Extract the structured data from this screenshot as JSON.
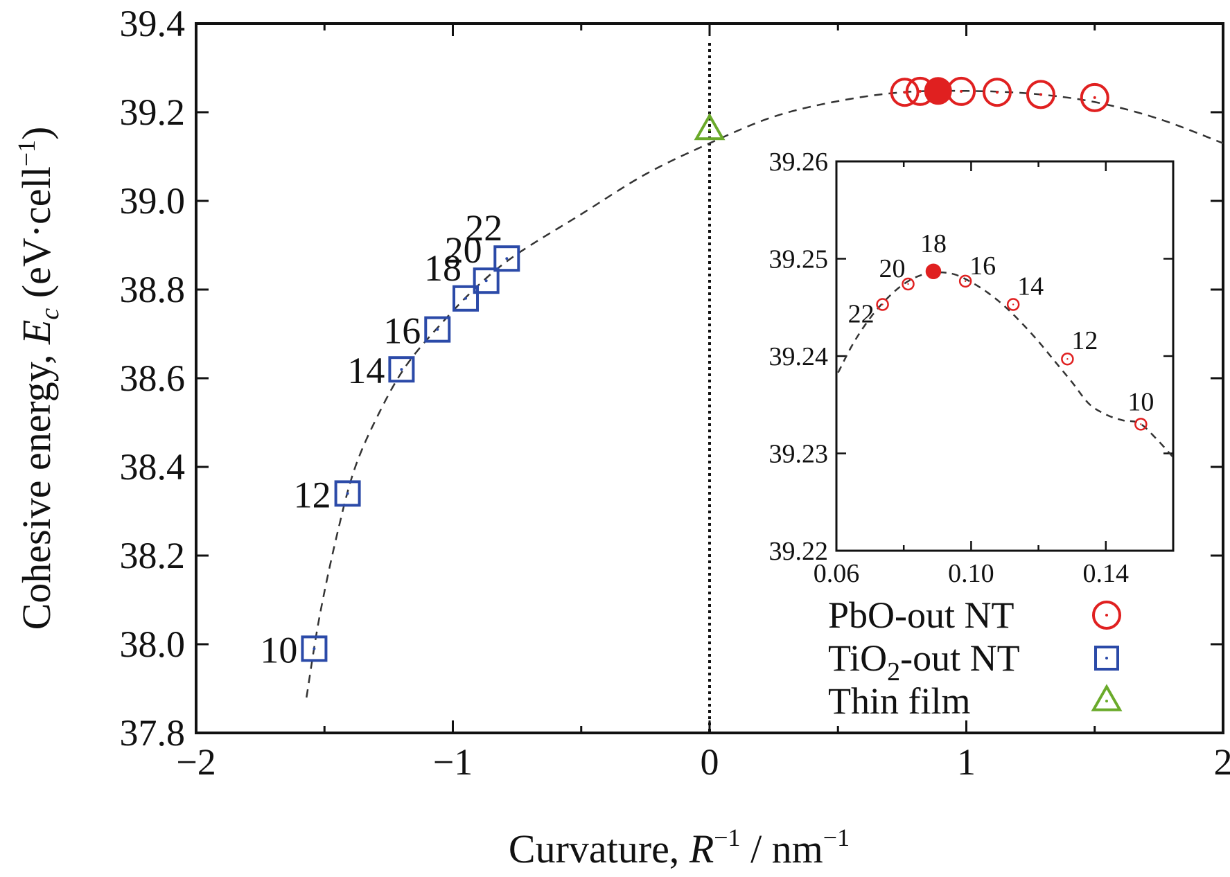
{
  "chart_data": [
    {
      "type": "scatter",
      "ylabel": {
        "prefix": "Cohesive energy, ",
        "symbol": "E",
        "subscript": "c",
        "unit_open": " (eV·cell",
        "unit_sup": "−1",
        "unit_close": ")"
      },
      "xlabel": {
        "prefix": "Curvature, ",
        "symbol": "R",
        "sup": "−1",
        "unit": " / nm",
        "unit_sup": "−1"
      },
      "xlim": [
        -2,
        2
      ],
      "ylim": [
        37.8,
        39.4
      ],
      "x_ticks": [
        -2,
        -1,
        0,
        1,
        2
      ],
      "x_tick_labels": [
        "−2",
        "−1",
        "0",
        "1",
        "2"
      ],
      "y_ticks": [
        37.8,
        38.0,
        38.2,
        38.4,
        38.6,
        38.8,
        39.0,
        39.2,
        39.4
      ],
      "y_tick_labels": [
        "37.8",
        "38.0",
        "38.2",
        "38.4",
        "38.6",
        "38.8",
        "39.0",
        "39.2",
        "39.4"
      ],
      "reference_line": {
        "x": 0,
        "style": "dotted"
      },
      "series": [
        {
          "name": "PbO-out NT",
          "marker": "circle",
          "color": "#e02020",
          "points": [
            {
              "x": 0.76,
              "y": 39.245
            },
            {
              "x": 0.82,
              "y": 39.247
            },
            {
              "x": 0.89,
              "y": 39.248,
              "filled": true
            },
            {
              "x": 0.98,
              "y": 39.247
            },
            {
              "x": 1.12,
              "y": 39.245
            },
            {
              "x": 1.29,
              "y": 39.24
            },
            {
              "x": 1.5,
              "y": 39.233
            }
          ]
        },
        {
          "name": "TiO2-out NT",
          "marker": "square",
          "color": "#2b4aa8",
          "points": [
            {
              "x": -1.54,
              "y": 37.99,
              "label": "10"
            },
            {
              "x": -1.41,
              "y": 38.34,
              "label": "12"
            },
            {
              "x": -1.2,
              "y": 38.62,
              "label": "14"
            },
            {
              "x": -1.06,
              "y": 38.71,
              "label": "16"
            },
            {
              "x": -0.95,
              "y": 38.78,
              "label": "18"
            },
            {
              "x": -0.87,
              "y": 38.82,
              "label": "20"
            },
            {
              "x": -0.79,
              "y": 38.87,
              "label": "22"
            }
          ]
        },
        {
          "name": "Thin film",
          "marker": "triangle",
          "color": "#6aaa2a",
          "points": [
            {
              "x": 0.0,
              "y": 39.16
            }
          ]
        }
      ],
      "fit_curve": {
        "style": "dashed",
        "points": [
          [
            -1.57,
            37.88
          ],
          [
            -1.52,
            38.06
          ],
          [
            -1.45,
            38.25
          ],
          [
            -1.38,
            38.4
          ],
          [
            -1.28,
            38.53
          ],
          [
            -1.18,
            38.63
          ],
          [
            -1.05,
            38.72
          ],
          [
            -0.9,
            38.81
          ],
          [
            -0.75,
            38.88
          ],
          [
            -0.5,
            38.97
          ],
          [
            -0.25,
            39.06
          ],
          [
            0,
            39.13
          ],
          [
            0.25,
            39.19
          ],
          [
            0.5,
            39.225
          ],
          [
            0.75,
            39.245
          ],
          [
            1.0,
            39.248
          ],
          [
            1.25,
            39.242
          ],
          [
            1.5,
            39.223
          ],
          [
            1.75,
            39.185
          ],
          [
            2.0,
            39.13
          ]
        ]
      },
      "legend": {
        "position": "bottom-right",
        "entries": [
          "PbO-out NT",
          "TiO2-out NT",
          "Thin film"
        ],
        "entry_text": [
          {
            "main": "PbO-out NT"
          },
          {
            "pre": "TiO",
            "sub": "2",
            "post": "-out NT"
          },
          {
            "main": "Thin film"
          }
        ]
      }
    },
    {
      "type": "scatter",
      "role": "inset",
      "xlim": [
        0.06,
        0.16
      ],
      "ylim": [
        39.22,
        39.26
      ],
      "x_ticks": [
        0.06,
        0.1,
        0.14
      ],
      "x_tick_labels": [
        "0.06",
        "0.10",
        "0.14"
      ],
      "y_ticks": [
        39.22,
        39.23,
        39.24,
        39.25,
        39.26
      ],
      "y_tick_labels": [
        "39.22",
        "39.23",
        "39.24",
        "39.25",
        "39.26"
      ],
      "series": [
        {
          "name": "PbO-out NT",
          "marker": "circle",
          "color": "#e02020",
          "points": [
            {
              "x": 0.0737,
              "y": 39.2453,
              "label": "22"
            },
            {
              "x": 0.0813,
              "y": 39.2474,
              "label": "20"
            },
            {
              "x": 0.0888,
              "y": 39.2487,
              "label": "18",
              "filled": true
            },
            {
              "x": 0.0983,
              "y": 39.2477,
              "label": "16"
            },
            {
              "x": 0.1125,
              "y": 39.2453,
              "label": "14"
            },
            {
              "x": 0.1286,
              "y": 39.2397,
              "label": "12"
            },
            {
              "x": 0.1504,
              "y": 39.233,
              "label": "10"
            }
          ]
        }
      ],
      "fit_curve": {
        "style": "dashed",
        "points": [
          [
            0.0605,
            39.2383
          ],
          [
            0.065,
            39.2413
          ],
          [
            0.07,
            39.2439
          ],
          [
            0.075,
            39.2459
          ],
          [
            0.08,
            39.2474
          ],
          [
            0.085,
            39.2483
          ],
          [
            0.09,
            39.2486
          ],
          [
            0.095,
            39.2484
          ],
          [
            0.1,
            39.2476
          ],
          [
            0.105,
            39.2465
          ],
          [
            0.11,
            39.2451
          ],
          [
            0.115,
            39.2434
          ],
          [
            0.12,
            39.2415
          ],
          [
            0.125,
            39.2394
          ],
          [
            0.13,
            39.2373
          ],
          [
            0.135,
            39.2351
          ],
          [
            0.14,
            39.234
          ],
          [
            0.145,
            39.2334
          ],
          [
            0.15,
            39.2331
          ],
          [
            0.155,
            39.2315
          ],
          [
            0.16,
            39.2296
          ]
        ]
      }
    }
  ]
}
